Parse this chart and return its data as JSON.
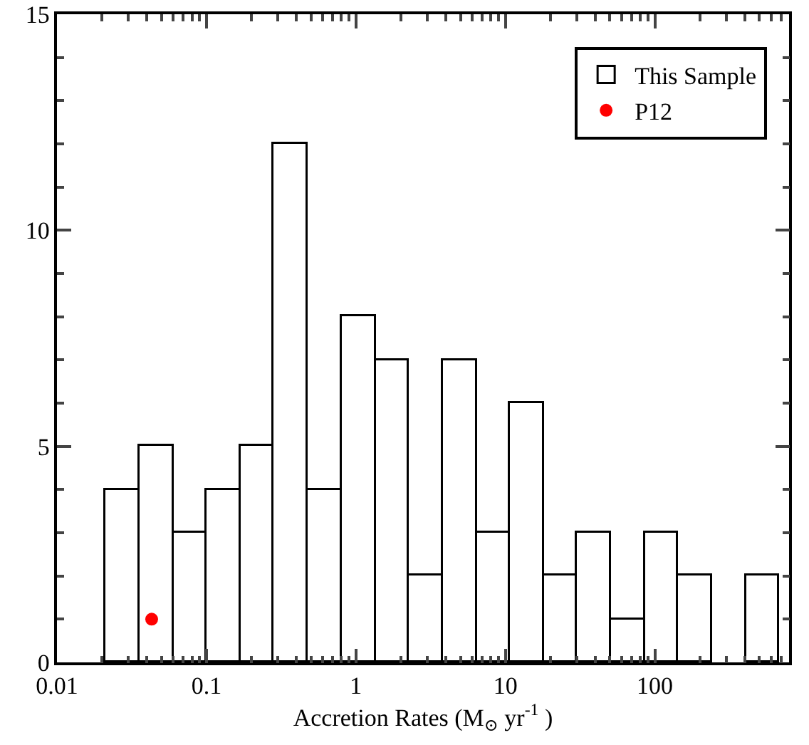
{
  "chart_data": {
    "type": "histogram",
    "xlabel": "Accretion Rates (M$_{⊙}$ yr$^{-1}$ )",
    "bins": [
      0.021,
      0.036,
      0.06,
      0.1,
      0.17,
      0.28,
      0.48,
      0.8,
      1.35,
      2.26,
      3.8,
      6.4,
      10.7,
      18,
      30,
      51,
      86,
      144,
      242,
      407,
      684
    ],
    "series": [
      {
        "name": "This Sample",
        "color": "#ffffff",
        "values": [
          4,
          5,
          3,
          4,
          5,
          12,
          4,
          8,
          7,
          2,
          7,
          3,
          6,
          2,
          3,
          1,
          3,
          2,
          0,
          2
        ]
      },
      {
        "name": "P12",
        "type": "scatter",
        "color": "#ff0000",
        "x": [
          0.043
        ],
        "values": [
          1
        ]
      }
    ],
    "log": "x",
    "xlim": [
      0.01,
      790
    ],
    "xticks": [
      0.01,
      0.1,
      1,
      10,
      100
    ],
    "ylim": [
      0,
      15
    ],
    "yticks": [
      0,
      5,
      10,
      15
    ],
    "grid": false,
    "legend": "top right",
    "marker": "circle"
  }
}
